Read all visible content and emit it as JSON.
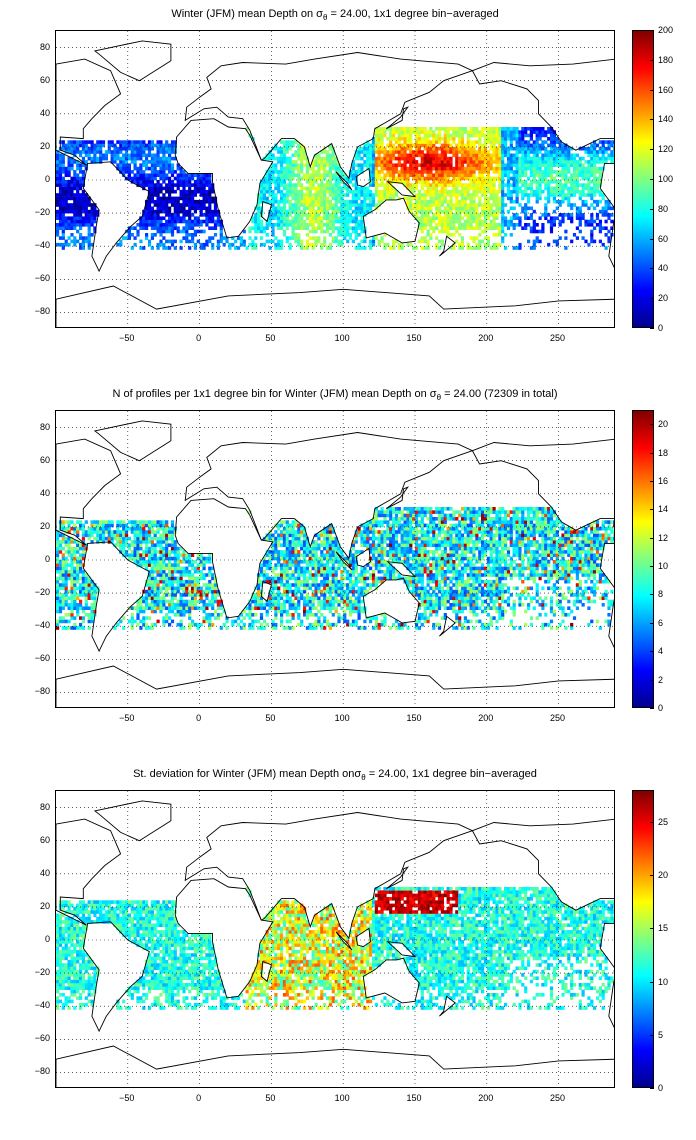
{
  "panels": [
    {
      "id": "mean",
      "title_pre": "Winter (JFM) mean Depth on σ",
      "title_sub": "θ",
      "title_post": " = 24.00, 1x1 degree bin−averaged",
      "colorbar": {
        "ticks": [
          "0",
          "20",
          "40",
          "60",
          "80",
          "100",
          "120",
          "140",
          "160",
          "180",
          "200"
        ],
        "min": 0,
        "max": 200
      }
    },
    {
      "id": "count",
      "title_pre": "N of profiles per 1x1 degree bin for Winter (JFM) mean Depth on σ",
      "title_sub": "θ",
      "title_post": " = 24.00 (72309 in total)",
      "colorbar": {
        "ticks": [
          "0",
          "2",
          "4",
          "6",
          "8",
          "10",
          "12",
          "14",
          "16",
          "18",
          "20"
        ],
        "min": 0,
        "max": 21
      }
    },
    {
      "id": "std",
      "title_pre": "St. deviation for Winter (JFM) mean Depth onσ",
      "title_sub": "θ",
      "title_post": " = 24.00, 1x1 degree bin−averaged",
      "colorbar": {
        "ticks": [
          "0",
          "5",
          "10",
          "15",
          "20",
          "25"
        ],
        "min": 0,
        "max": 28
      }
    }
  ],
  "axes": {
    "x_ticks": [
      "−50",
      "0",
      "50",
      "100",
      "150",
      "200",
      "250"
    ],
    "x_values": [
      -50,
      0,
      50,
      100,
      150,
      200,
      250
    ],
    "y_ticks": [
      "80",
      "60",
      "40",
      "20",
      "0",
      "−20",
      "−40",
      "−60",
      "−80"
    ],
    "y_values": [
      80,
      60,
      40,
      20,
      0,
      -20,
      -40,
      -60,
      -80
    ],
    "xlim": [
      -100,
      290
    ],
    "ylim": [
      -90,
      90
    ],
    "grid": true,
    "colormap": [
      "#00008f",
      "#0000ff",
      "#0080ff",
      "#00ffff",
      "#80ff80",
      "#ffff00",
      "#ff8000",
      "#ff0000",
      "#800000"
    ]
  }
}
